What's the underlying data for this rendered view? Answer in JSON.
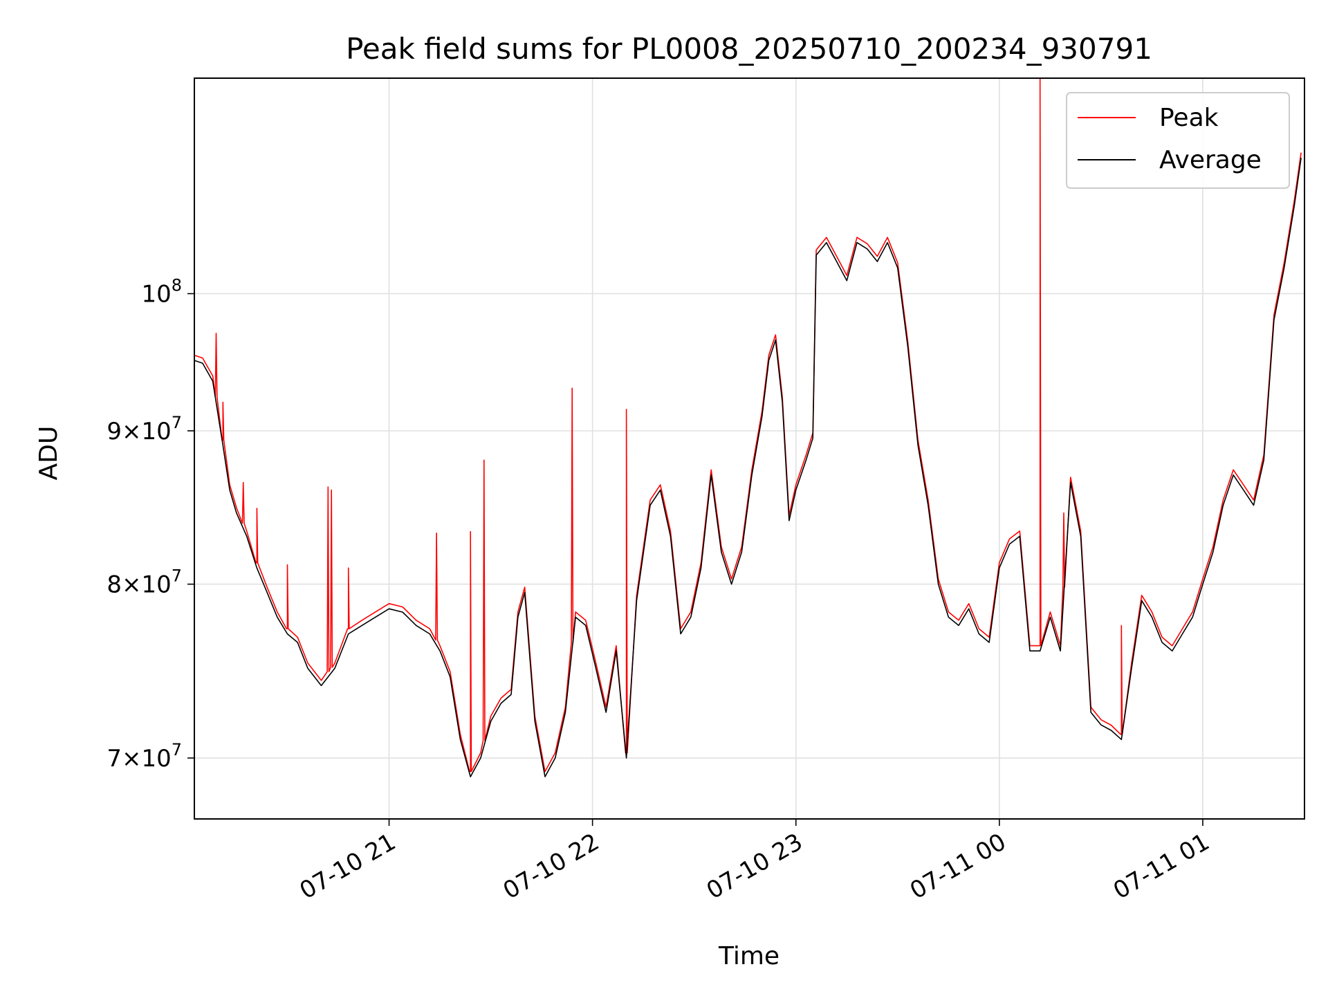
{
  "chart_data": {
    "type": "line",
    "title": "Peak field sums for PL0008_20250710_200234_930791",
    "xlabel": "Time",
    "ylabel": "ADU",
    "y_scale": "log",
    "ylim": [
      66800000,
      118000000
    ],
    "xlim": [
      "2025-07-10 20:02:34",
      "2025-07-11 01:30:00"
    ],
    "grid": true,
    "legend_position": "upper right",
    "x_ticks": [
      {
        "value": "2025-07-10 21:00",
        "label": "07-10 21"
      },
      {
        "value": "2025-07-10 22:00",
        "label": "07-10 22"
      },
      {
        "value": "2025-07-10 23:00",
        "label": "07-10 23"
      },
      {
        "value": "2025-07-11 00:00",
        "label": "07-11 00"
      },
      {
        "value": "2025-07-11 01:00",
        "label": "07-11 01"
      }
    ],
    "y_ticks": [
      {
        "value": 70000000,
        "label_mantissa": "7",
        "label_base": "10",
        "label_exp": "7"
      },
      {
        "value": 80000000,
        "label_mantissa": "8",
        "label_base": "10",
        "label_exp": "7"
      },
      {
        "value": 90000000,
        "label_mantissa": "9",
        "label_base": "10",
        "label_exp": "7"
      },
      {
        "value": 100000000,
        "label_mantissa": "",
        "label_base": "10",
        "label_exp": "8"
      }
    ],
    "series": [
      {
        "name": "Average",
        "color": "#000000",
        "x": [
          "2025-07-10 20:02:34",
          "2025-07-10 20:05",
          "2025-07-10 20:08",
          "2025-07-10 20:11",
          "2025-07-10 20:13",
          "2025-07-10 20:15",
          "2025-07-10 20:18",
          "2025-07-10 20:21",
          "2025-07-10 20:24",
          "2025-07-10 20:27",
          "2025-07-10 20:30",
          "2025-07-10 20:33",
          "2025-07-10 20:36",
          "2025-07-10 20:40",
          "2025-07-10 20:44",
          "2025-07-10 20:48",
          "2025-07-10 20:52",
          "2025-07-10 20:56",
          "2025-07-10 21:00",
          "2025-07-10 21:04",
          "2025-07-10 21:08",
          "2025-07-10 21:12",
          "2025-07-10 21:15",
          "2025-07-10 21:18",
          "2025-07-10 21:21",
          "2025-07-10 21:24",
          "2025-07-10 21:27",
          "2025-07-10 21:30",
          "2025-07-10 21:33",
          "2025-07-10 21:36",
          "2025-07-10 21:38",
          "2025-07-10 21:40",
          "2025-07-10 21:43",
          "2025-07-10 21:46",
          "2025-07-10 21:49",
          "2025-07-10 21:52",
          "2025-07-10 21:55",
          "2025-07-10 21:58",
          "2025-07-10 22:01",
          "2025-07-10 22:04",
          "2025-07-10 22:07",
          "2025-07-10 22:10",
          "2025-07-10 22:13",
          "2025-07-10 22:17",
          "2025-07-10 22:20",
          "2025-07-10 22:23",
          "2025-07-10 22:26",
          "2025-07-10 22:29",
          "2025-07-10 22:32",
          "2025-07-10 22:35",
          "2025-07-10 22:38",
          "2025-07-10 22:41",
          "2025-07-10 22:44",
          "2025-07-10 22:47",
          "2025-07-10 22:50",
          "2025-07-10 22:52",
          "2025-07-10 22:54",
          "2025-07-10 22:56",
          "2025-07-10 22:58",
          "2025-07-10 23:00",
          "2025-07-10 23:03",
          "2025-07-10 23:05",
          "2025-07-10 23:06",
          "2025-07-10 23:09",
          "2025-07-10 23:12",
          "2025-07-10 23:15",
          "2025-07-10 23:18",
          "2025-07-10 23:21",
          "2025-07-10 23:24",
          "2025-07-10 23:27",
          "2025-07-10 23:30",
          "2025-07-10 23:33",
          "2025-07-10 23:36",
          "2025-07-10 23:39",
          "2025-07-10 23:42",
          "2025-07-10 23:45",
          "2025-07-10 23:48",
          "2025-07-10 23:51",
          "2025-07-10 23:54",
          "2025-07-10 23:57",
          "2025-07-11 00:00",
          "2025-07-11 00:03",
          "2025-07-11 00:06",
          "2025-07-11 00:09",
          "2025-07-11 00:12",
          "2025-07-11 00:15",
          "2025-07-11 00:18",
          "2025-07-11 00:21",
          "2025-07-11 00:24",
          "2025-07-11 00:27",
          "2025-07-11 00:30",
          "2025-07-11 00:33",
          "2025-07-11 00:36",
          "2025-07-11 00:39",
          "2025-07-11 00:42",
          "2025-07-11 00:45",
          "2025-07-11 00:48",
          "2025-07-11 00:51",
          "2025-07-11 00:54",
          "2025-07-11 00:57",
          "2025-07-11 01:00",
          "2025-07-11 01:03",
          "2025-07-11 01:06",
          "2025-07-11 01:09",
          "2025-07-11 01:12",
          "2025-07-11 01:15",
          "2025-07-11 01:18",
          "2025-07-11 01:21",
          "2025-07-11 01:24",
          "2025-07-11 01:27",
          "2025-07-11 01:29"
        ],
        "y": [
          95000000,
          94800000,
          93500000,
          89000000,
          86000000,
          84500000,
          83000000,
          81000000,
          79500000,
          78000000,
          77000000,
          76500000,
          75000000,
          74000000,
          75000000,
          77000000,
          77500000,
          78000000,
          78500000,
          78300000,
          77500000,
          77000000,
          76000000,
          74500000,
          71000000,
          69000000,
          70000000,
          72000000,
          73000000,
          73500000,
          78000000,
          79500000,
          72000000,
          69000000,
          70000000,
          72500000,
          78000000,
          77500000,
          75000000,
          72500000,
          76000000,
          70000000,
          79000000,
          85000000,
          86000000,
          83000000,
          77000000,
          78000000,
          81000000,
          87000000,
          82000000,
          80000000,
          82000000,
          87000000,
          91000000,
          95000000,
          96500000,
          92000000,
          84000000,
          86000000,
          88000000,
          89500000,
          103000000,
          104000000,
          102500000,
          101000000,
          104000000,
          103500000,
          102500000,
          104000000,
          102000000,
          96000000,
          89000000,
          85000000,
          80000000,
          78000000,
          77500000,
          78500000,
          77000000,
          76500000,
          81000000,
          82500000,
          83000000,
          76000000,
          76000000,
          78000000,
          76000000,
          86500000,
          83000000,
          72500000,
          71800000,
          71500000,
          71000000,
          75000000,
          79000000,
          78000000,
          76500000,
          76000000,
          77000000,
          78000000,
          80000000,
          82000000,
          85000000,
          87000000,
          86000000,
          85000000,
          88000000,
          98000000,
          102000000,
          107000000,
          111000000
        ]
      },
      {
        "name": "Peak",
        "color": "#ff0000",
        "spikes": [
          {
            "x": "2025-07-10 20:09",
            "y": 97000000
          },
          {
            "x": "2025-07-10 20:11",
            "y": 92000000
          },
          {
            "x": "2025-07-10 20:17",
            "y": 86500000
          },
          {
            "x": "2025-07-10 20:21",
            "y": 84800000
          },
          {
            "x": "2025-07-10 20:30",
            "y": 81200000
          },
          {
            "x": "2025-07-10 20:42",
            "y": 86200000
          },
          {
            "x": "2025-07-10 20:43",
            "y": 86000000
          },
          {
            "x": "2025-07-10 20:48",
            "y": 81000000
          },
          {
            "x": "2025-07-10 21:14",
            "y": 83200000
          },
          {
            "x": "2025-07-10 21:24",
            "y": 83300000
          },
          {
            "x": "2025-07-10 21:28",
            "y": 88000000
          },
          {
            "x": "2025-07-10 21:54",
            "y": 93000000
          },
          {
            "x": "2025-07-10 22:10",
            "y": 91500000
          },
          {
            "x": "2025-07-11 00:12",
            "y": 118000000
          },
          {
            "x": "2025-07-11 00:19",
            "y": 84500000
          },
          {
            "x": "2025-07-11 00:36",
            "y": 77500000
          }
        ]
      }
    ]
  }
}
